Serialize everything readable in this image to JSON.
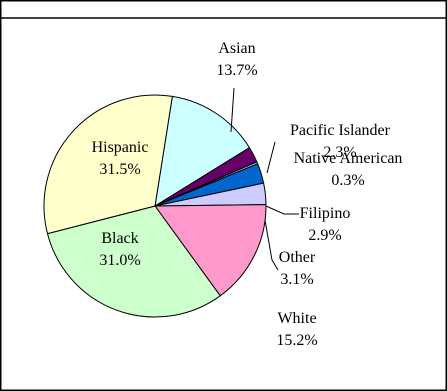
{
  "chart_data": {
    "type": "pie",
    "title": "",
    "start_angle_deg": 81,
    "direction": "clockwise",
    "slices": [
      {
        "name": "Asian",
        "value": 13.7,
        "value_label": "13.7%",
        "color": "#ccffff"
      },
      {
        "name": "Pacific Islander",
        "value": 2.3,
        "value_label": "2.3%",
        "color": "#660066"
      },
      {
        "name": "Native American",
        "value": 0.3,
        "value_label": "0.3%",
        "color": "#99ccff"
      },
      {
        "name": "Filipino",
        "value": 2.9,
        "value_label": "2.9%",
        "color": "#0066cc"
      },
      {
        "name": "Other",
        "value": 3.1,
        "value_label": "3.1%",
        "color": "#ccccff"
      },
      {
        "name": "White",
        "value": 15.2,
        "value_label": "15.2%",
        "color": "#ff99cc"
      },
      {
        "name": "Black",
        "value": 31.0,
        "value_label": "31.0%",
        "color": "#ccffcc"
      },
      {
        "name": "Hispanic",
        "value": 31.5,
        "value_label": "31.5%",
        "color": "#ffffcc"
      }
    ]
  }
}
